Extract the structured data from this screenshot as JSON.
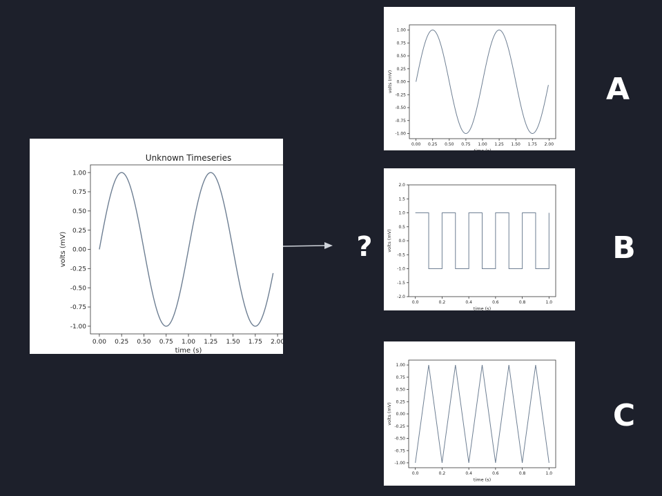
{
  "colors": {
    "background": "#1d202b",
    "line": "#6d7e92",
    "panel": "#ffffff",
    "text": "#ffffff"
  },
  "question_mark": "?",
  "arrow_icon": "right-arrow-icon",
  "charts": [
    {
      "id": "main",
      "type": "line",
      "title": "Unknown Timeseries",
      "xlabel": "time (s)",
      "ylabel": "volts (mV)",
      "xlim": [
        -0.1,
        2.1
      ],
      "ylim": [
        -1.1,
        1.1
      ],
      "xticks": [
        "0.00",
        "0.25",
        "0.50",
        "0.75",
        "1.00",
        "1.25",
        "1.50",
        "1.75",
        "2.00"
      ],
      "yticks": [
        "-1.00",
        "-0.75",
        "-0.50",
        "-0.25",
        "0.00",
        "0.25",
        "0.50",
        "0.75",
        "1.00"
      ],
      "series": [
        {
          "shape": "sine",
          "amplitude": 1,
          "frequency_hz": 1,
          "x_range": [
            0,
            1.95
          ]
        }
      ]
    },
    {
      "id": "A",
      "label": "A",
      "type": "line",
      "title": "",
      "xlabel": "time (s)",
      "ylabel": "volts (mV)",
      "xlim": [
        -0.1,
        2.1
      ],
      "ylim": [
        -1.1,
        1.1
      ],
      "xticks": [
        "0.00",
        "0.25",
        "0.50",
        "0.75",
        "1.00",
        "1.25",
        "1.50",
        "1.75",
        "2.00"
      ],
      "yticks": [
        "-1.00",
        "-0.75",
        "-0.50",
        "-0.25",
        "0.00",
        "0.25",
        "0.50",
        "0.75",
        "1.00"
      ],
      "series": [
        {
          "shape": "sine",
          "amplitude": 1,
          "frequency_hz": 1,
          "x_range": [
            0,
            1.99
          ]
        }
      ]
    },
    {
      "id": "B",
      "label": "B",
      "type": "line",
      "title": "",
      "xlabel": "time (s)",
      "ylabel": "volts (mV)",
      "xlim": [
        -0.05,
        1.05
      ],
      "ylim": [
        -2.0,
        2.0
      ],
      "xticks": [
        "0.0",
        "0.2",
        "0.4",
        "0.6",
        "0.8",
        "1.0"
      ],
      "yticks": [
        "-2.0",
        "-1.5",
        "-1.0",
        "-0.5",
        "0.0",
        "0.5",
        "1.0",
        "1.5",
        "2.0"
      ],
      "series": [
        {
          "shape": "square",
          "amplitude": 1,
          "frequency_hz": 5,
          "x_range": [
            0,
            1.0
          ]
        }
      ]
    },
    {
      "id": "C",
      "label": "C",
      "type": "line",
      "title": "",
      "xlabel": "time (s)",
      "ylabel": "volts (mV)",
      "xlim": [
        -0.05,
        1.05
      ],
      "ylim": [
        -1.1,
        1.1
      ],
      "xticks": [
        "0.0",
        "0.2",
        "0.4",
        "0.6",
        "0.8",
        "1.0"
      ],
      "yticks": [
        "-1.00",
        "-0.75",
        "-0.50",
        "-0.25",
        "0.00",
        "0.25",
        "0.50",
        "0.75",
        "1.00"
      ],
      "series": [
        {
          "shape": "triangle",
          "amplitude": 1,
          "frequency_hz": 5,
          "x_range": [
            0,
            1.0
          ]
        }
      ]
    }
  ]
}
